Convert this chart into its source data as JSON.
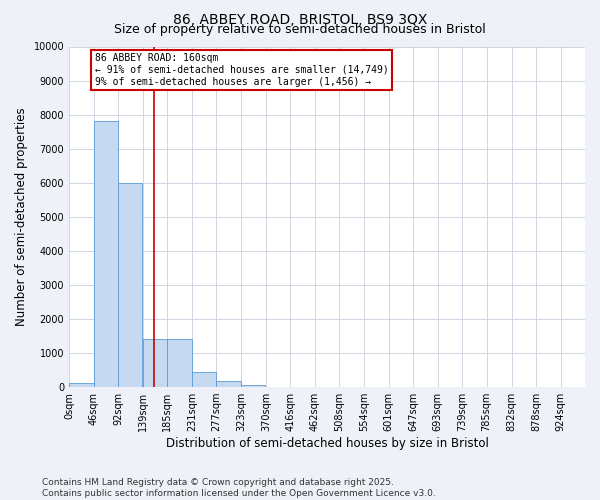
{
  "title": "86, ABBEY ROAD, BRISTOL, BS9 3QX",
  "subtitle": "Size of property relative to semi-detached houses in Bristol",
  "xlabel": "Distribution of semi-detached houses by size in Bristol",
  "ylabel": "Number of semi-detached properties",
  "bin_labels": [
    "0sqm",
    "46sqm",
    "92sqm",
    "139sqm",
    "185sqm",
    "231sqm",
    "277sqm",
    "323sqm",
    "370sqm",
    "416sqm",
    "462sqm",
    "508sqm",
    "554sqm",
    "601sqm",
    "647sqm",
    "693sqm",
    "739sqm",
    "785sqm",
    "832sqm",
    "878sqm",
    "924sqm"
  ],
  "bin_edges": [
    0,
    46,
    92,
    139,
    185,
    231,
    277,
    323,
    370,
    416,
    462,
    508,
    554,
    601,
    647,
    693,
    739,
    785,
    832,
    878,
    924
  ],
  "bar_heights": [
    120,
    7800,
    6000,
    1400,
    1400,
    450,
    180,
    50,
    10,
    5,
    2,
    0,
    0,
    0,
    0,
    0,
    0,
    0,
    0,
    0
  ],
  "bar_color": "#c5d9f1",
  "bar_edge_color": "#5b9bd5",
  "red_line_x": 160,
  "annotation_title": "86 ABBEY ROAD: 160sqm",
  "annotation_line1": "← 91% of semi-detached houses are smaller (14,749)",
  "annotation_line2": "9% of semi-detached houses are larger (1,456) →",
  "annotation_box_color": "#cc0000",
  "ylim": [
    0,
    10000
  ],
  "yticks": [
    0,
    1000,
    2000,
    3000,
    4000,
    5000,
    6000,
    7000,
    8000,
    9000,
    10000
  ],
  "footer_line1": "Contains HM Land Registry data © Crown copyright and database right 2025.",
  "footer_line2": "Contains public sector information licensed under the Open Government Licence v3.0.",
  "background_color": "#eef2f8",
  "plot_background_color": "#ffffff",
  "grid_color": "#c8d0de",
  "title_fontsize": 10,
  "subtitle_fontsize": 9,
  "axis_label_fontsize": 8.5,
  "tick_fontsize": 7,
  "footer_fontsize": 6.5
}
